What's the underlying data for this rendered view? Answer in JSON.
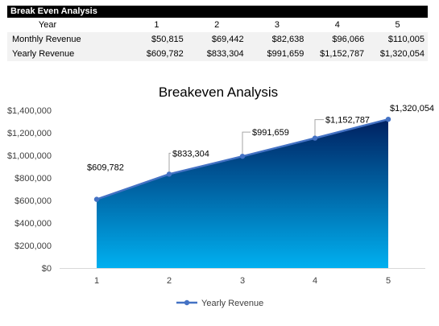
{
  "table": {
    "title": "Break Even Analysis",
    "year_label": "Year",
    "years": [
      "1",
      "2",
      "3",
      "4",
      "5"
    ],
    "rows": [
      {
        "label": "Monthly Revenue",
        "values": [
          "$50,815",
          "$69,442",
          "$82,638",
          "$96,066",
          "$110,005"
        ]
      },
      {
        "label": "Yearly Revenue",
        "values": [
          "$609,782",
          "$833,304",
          "$991,659",
          "$1,152,787",
          "$1,320,054"
        ]
      }
    ]
  },
  "chart_data": {
    "type": "area",
    "title": "Breakeven Analysis",
    "categories": [
      "1",
      "2",
      "3",
      "4",
      "5"
    ],
    "series": [
      {
        "name": "Yearly Revenue",
        "values": [
          609782,
          833304,
          991659,
          1152787,
          1320054
        ],
        "labels": [
          "$609,782",
          "$833,304",
          "$991,659",
          "$1,152,787",
          "$1,320,054"
        ]
      }
    ],
    "ylim": [
      0,
      1400000
    ],
    "yticks": [
      0,
      200000,
      400000,
      600000,
      800000,
      1000000,
      1200000,
      1400000
    ],
    "ytick_labels": [
      "$0",
      "$200,000",
      "$400,000",
      "$600,000",
      "$800,000",
      "$1,000,000",
      "$1,200,000",
      "$1,400,000"
    ],
    "grid": false,
    "legend": "bottom",
    "colors": {
      "line": "#4472c4",
      "fill_top": "#002060",
      "fill_bottom": "#00b0f0",
      "axis": "#d9d9d9",
      "text": "#404040"
    }
  }
}
